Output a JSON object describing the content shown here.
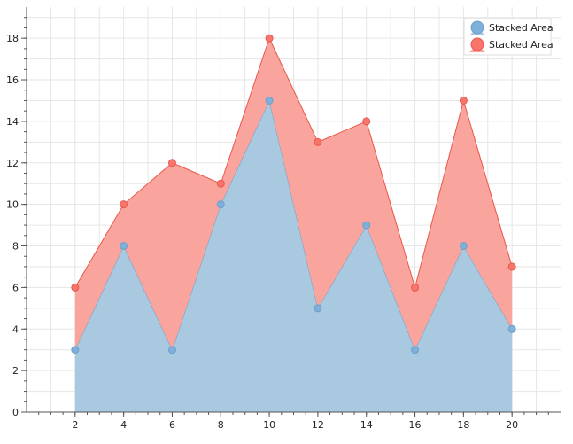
{
  "chart_data": {
    "type": "area",
    "stacked": true,
    "title": "",
    "xlabel": "",
    "ylabel": "",
    "x": [
      2,
      4,
      6,
      8,
      10,
      12,
      14,
      16,
      18,
      20
    ],
    "series": [
      {
        "name": "Stacked Area",
        "values": [
          3,
          8,
          3,
          10,
          15,
          5,
          9,
          3,
          8,
          4
        ],
        "fill": "#a9c9e0",
        "stroke": "#6e9fcb",
        "marker_fill": "#7fb0da"
      },
      {
        "name": "Stacked Area",
        "values": [
          3,
          2,
          9,
          1,
          3,
          8,
          5,
          3,
          7,
          3
        ],
        "fill": "#f9a49c",
        "stroke": "#e8574d",
        "marker_fill": "#f8756c"
      }
    ],
    "xlim": [
      0,
      22
    ],
    "ylim": [
      0,
      19.5
    ],
    "x_ticks": [
      "2",
      "4",
      "6",
      "8",
      "10",
      "12",
      "14",
      "16",
      "18",
      "20"
    ],
    "y_ticks": [
      "0",
      "2",
      "4",
      "6",
      "8",
      "10",
      "12",
      "14",
      "16",
      "18"
    ],
    "grid": true,
    "legend_position": "top-right"
  }
}
